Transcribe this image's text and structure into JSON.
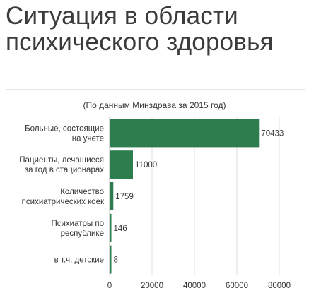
{
  "title": "Ситуация в области психического здоровья",
  "subtitle": "(По данным Минздрава за 2015 год)",
  "chart_data": {
    "type": "bar",
    "orientation": "horizontal",
    "categories": [
      [
        "Больные, состоящие",
        "на учете"
      ],
      [
        "Пациенты, лечащиеся",
        "за год в стационарах"
      ],
      [
        "Количество",
        "психиатрических коек"
      ],
      [
        "Психиатры по",
        "республике"
      ],
      [
        "в т.ч. детские"
      ]
    ],
    "values": [
      70433,
      11000,
      1759,
      146,
      8
    ],
    "value_labels": [
      "70433",
      "11000",
      "1759",
      "146",
      "8"
    ],
    "xlim": [
      0,
      90000
    ],
    "xticks": [
      0,
      20000,
      40000,
      60000,
      80000
    ],
    "xtick_labels": [
      "0",
      "20000",
      "40000",
      "60000",
      "80000"
    ],
    "grid": "vertical",
    "bar_color": "#2e7d4f",
    "grid_color": "#dcdcdc"
  }
}
